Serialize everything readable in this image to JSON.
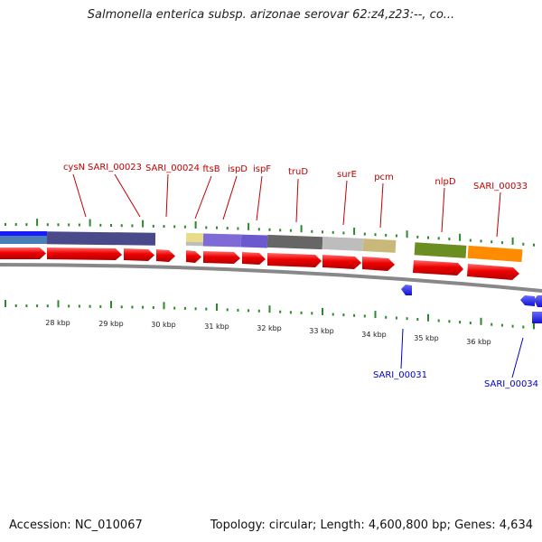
{
  "title": "Salmonella enterica subsp. arizonae serovar 62:z4,z23:--, co...",
  "footer": {
    "accession": "Accession: NC_010067",
    "topology": "Topology: circular; Length: 4,600,800 bp; Genes: 4,634"
  },
  "colors": {
    "forward_gene": "#ee0000",
    "reverse_gene": "#1a1aff",
    "forward_label": "#c00000",
    "reverse_label": "#0000c8",
    "tick": "#2a8a2a",
    "backbone": "#888888"
  },
  "forward_labels": [
    "cysN",
    "SARI_00023",
    "SARI_00024",
    "ftsB",
    "ispD",
    "ispF",
    "truD",
    "surE",
    "pcm",
    "nlpD",
    "SARI_00033"
  ],
  "reverse_labels": [
    "SARI_00031",
    "SARI_00034"
  ],
  "kbp_ticks": [
    "28 kbp",
    "29 kbp",
    "30 kbp",
    "31 kbp",
    "32 kbp",
    "33 kbp",
    "34 kbp",
    "35 kbp",
    "36 kbp"
  ],
  "cog_band_colors": [
    "#4a7fb5",
    "#4a4a8a",
    "#e8dc8a",
    "#7f6ad8",
    "#6a5acd",
    "#666666",
    "#bdbdbd",
    "#c8b97a",
    "#6b8e23",
    "#ff8c00"
  ]
}
